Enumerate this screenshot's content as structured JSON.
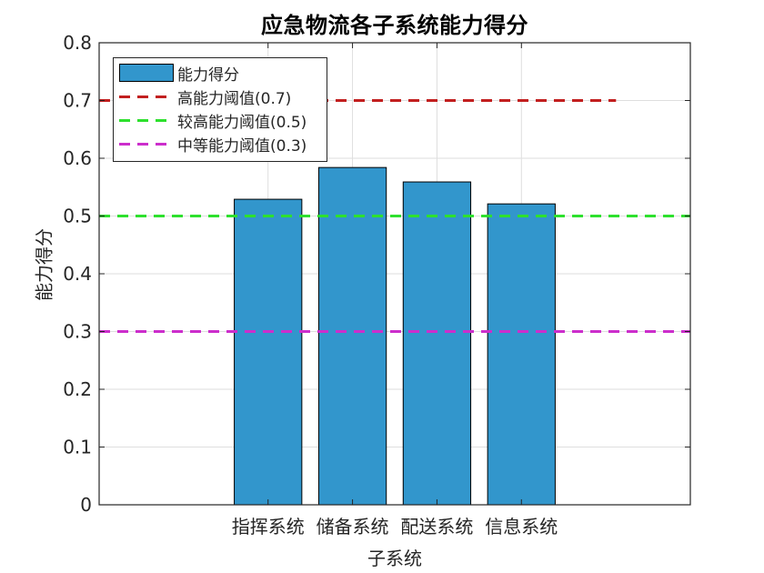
{
  "chart_data": {
    "type": "bar",
    "title": "应急物流各子系统能力得分",
    "xlabel": "子系统",
    "ylabel": "能力得分",
    "categories": [
      "指挥系统",
      "储备系统",
      "配送系统",
      "信息系统"
    ],
    "series": [
      {
        "name": "能力得分",
        "values": [
          0.529,
          0.584,
          0.559,
          0.521
        ],
        "color": "#3296cc"
      }
    ],
    "thresholds": [
      {
        "name": "高能力阈值(0.7)",
        "value": 0.7,
        "color": "#c21f1f",
        "style": "dashed",
        "x_end": 6.12
      },
      {
        "name": "较高能力阈值(0.5)",
        "value": 0.5,
        "color": "#2ee02e",
        "style": "dashed",
        "x_end": 7
      },
      {
        "name": "中等能力阈值(0.3)",
        "value": 0.3,
        "color": "#cc2ecc",
        "style": "dashed",
        "x_end": 7
      }
    ],
    "x_positions": [
      2,
      3,
      4,
      5
    ],
    "xlim": [
      0,
      7
    ],
    "ylim": [
      0,
      0.8
    ],
    "yticks": [
      0,
      0.1,
      0.2,
      0.3,
      0.4,
      0.5,
      0.6,
      0.7,
      0.8
    ],
    "ytick_labels": [
      "0",
      "0.1",
      "0.2",
      "0.3",
      "0.4",
      "0.5",
      "0.6",
      "0.7",
      "0.8"
    ],
    "grid": true,
    "legend_position": "upper left",
    "bar_width": 0.8
  },
  "legend": {
    "items": [
      {
        "label": "能力得分"
      },
      {
        "label": "高能力阈值(0.7)"
      },
      {
        "label": "较高能力阈值(0.5)"
      },
      {
        "label": "中等能力阈值(0.3)"
      }
    ]
  }
}
